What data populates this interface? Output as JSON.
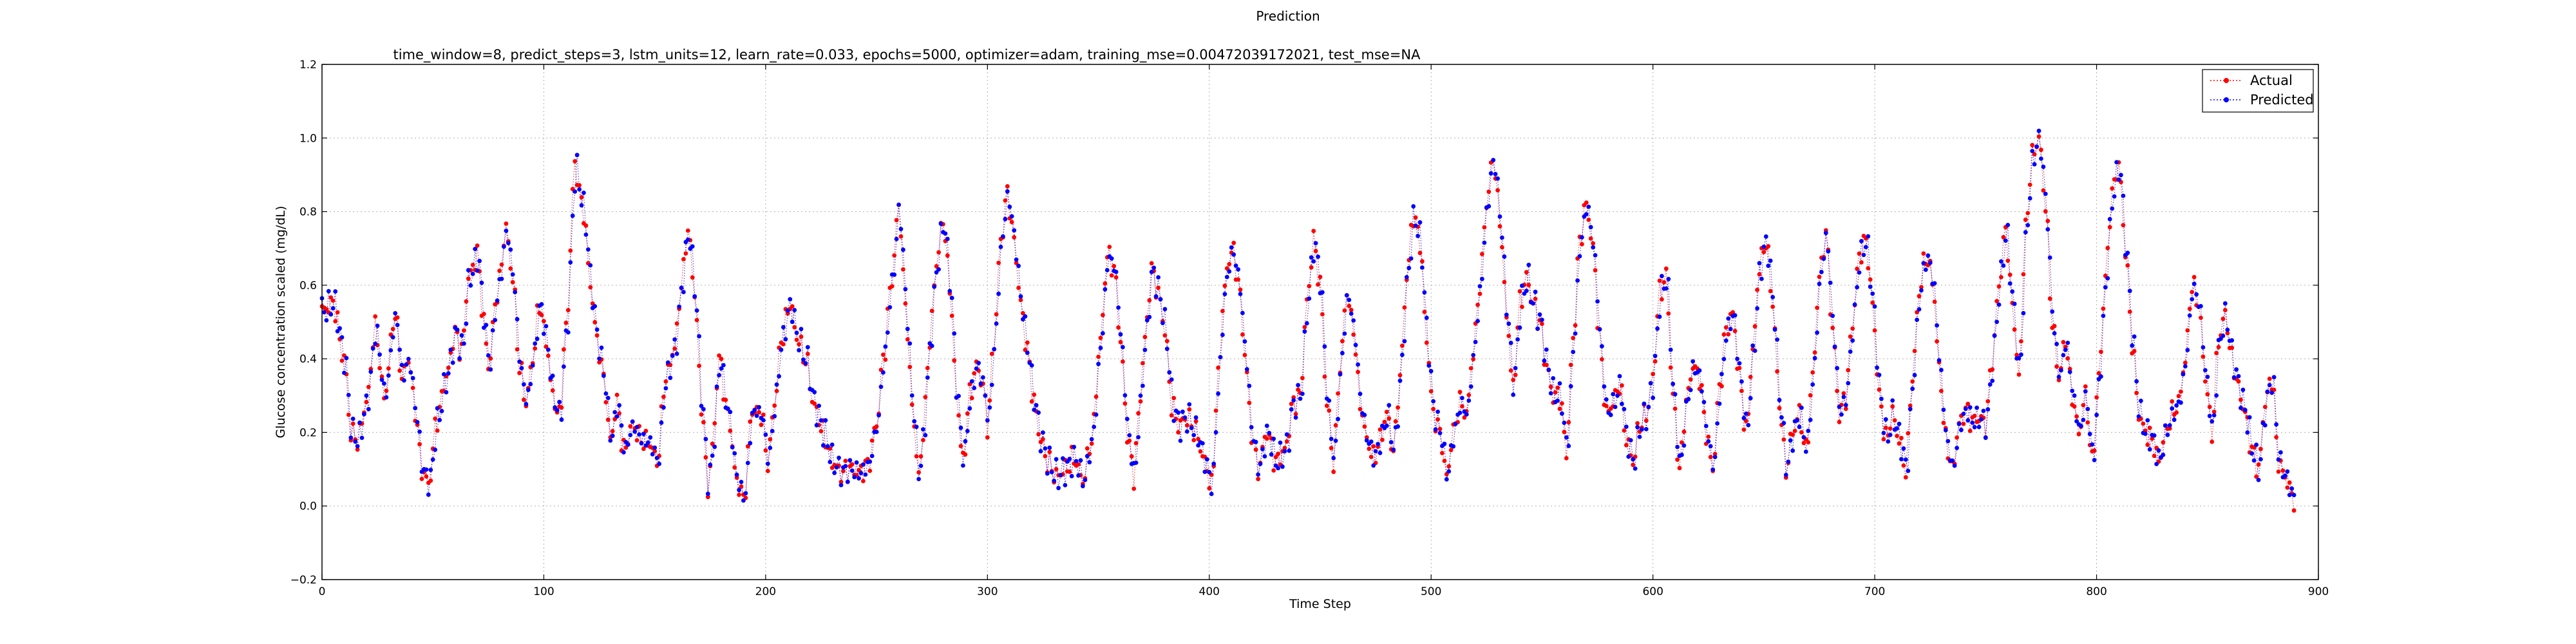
{
  "chart_data": {
    "type": "line",
    "suptitle": "Prediction",
    "title": "time_window=8, predict_steps=3, lstm_units=12, learn_rate=0.033, epochs=5000, optimizer=adam, training_mse=0.00472039172021, test_mse=NA",
    "xlabel": "Time Step",
    "ylabel": "Glucose concentration scaled (mg/dL)",
    "xlim": [
      0,
      900
    ],
    "ylim": [
      -0.2,
      1.2
    ],
    "xticks": [
      "0",
      "100",
      "200",
      "300",
      "400",
      "500",
      "600",
      "700",
      "800",
      "900"
    ],
    "yticks": [
      "−0.2",
      "0.0",
      "0.2",
      "0.4",
      "0.6",
      "0.8",
      "1.0",
      "1.2"
    ],
    "grid": true,
    "legend_position": "top-right",
    "series": [
      {
        "name": "Actual",
        "color": "#ff0000",
        "marker": "dot",
        "line": "dotted"
      },
      {
        "name": "Predicted",
        "color": "#0000ff",
        "marker": "dot",
        "line": "dotted"
      }
    ],
    "x_step": 1,
    "keypoints": [
      [
        0,
        0.53
      ],
      [
        5,
        0.55
      ],
      [
        10,
        0.4
      ],
      [
        13,
        0.2
      ],
      [
        16,
        0.18
      ],
      [
        20,
        0.28
      ],
      [
        24,
        0.48
      ],
      [
        28,
        0.3
      ],
      [
        33,
        0.52
      ],
      [
        36,
        0.35
      ],
      [
        39,
        0.4
      ],
      [
        42,
        0.26
      ],
      [
        45,
        0.1
      ],
      [
        48,
        0.06
      ],
      [
        52,
        0.24
      ],
      [
        56,
        0.35
      ],
      [
        60,
        0.47
      ],
      [
        63,
        0.42
      ],
      [
        66,
        0.62
      ],
      [
        70,
        0.68
      ],
      [
        73,
        0.5
      ],
      [
        75,
        0.38
      ],
      [
        79,
        0.58
      ],
      [
        83,
        0.75
      ],
      [
        86,
        0.62
      ],
      [
        89,
        0.38
      ],
      [
        92,
        0.28
      ],
      [
        95,
        0.4
      ],
      [
        98,
        0.55
      ],
      [
        101,
        0.45
      ],
      [
        104,
        0.3
      ],
      [
        107,
        0.24
      ],
      [
        110,
        0.48
      ],
      [
        114,
        0.92
      ],
      [
        118,
        0.8
      ],
      [
        121,
        0.6
      ],
      [
        124,
        0.45
      ],
      [
        127,
        0.35
      ],
      [
        130,
        0.18
      ],
      [
        133,
        0.28
      ],
      [
        136,
        0.15
      ],
      [
        140,
        0.22
      ],
      [
        144,
        0.18
      ],
      [
        148,
        0.17
      ],
      [
        151,
        0.12
      ],
      [
        155,
        0.35
      ],
      [
        159,
        0.43
      ],
      [
        162,
        0.6
      ],
      [
        165,
        0.75
      ],
      [
        168,
        0.58
      ],
      [
        171,
        0.28
      ],
      [
        174,
        0.05
      ],
      [
        176,
        0.16
      ],
      [
        179,
        0.4
      ],
      [
        183,
        0.25
      ],
      [
        187,
        0.07
      ],
      [
        190,
        0.02
      ],
      [
        194,
        0.26
      ],
      [
        198,
        0.25
      ],
      [
        201,
        0.12
      ],
      [
        204,
        0.28
      ],
      [
        207,
        0.45
      ],
      [
        211,
        0.55
      ],
      [
        214,
        0.46
      ],
      [
        218,
        0.4
      ],
      [
        222,
        0.27
      ],
      [
        226,
        0.2
      ],
      [
        230,
        0.12
      ],
      [
        234,
        0.09
      ],
      [
        238,
        0.1
      ],
      [
        242,
        0.09
      ],
      [
        246,
        0.11
      ],
      [
        250,
        0.22
      ],
      [
        253,
        0.4
      ],
      [
        257,
        0.62
      ],
      [
        260,
        0.82
      ],
      [
        263,
        0.55
      ],
      [
        266,
        0.28
      ],
      [
        269,
        0.08
      ],
      [
        271,
        0.2
      ],
      [
        274,
        0.45
      ],
      [
        277,
        0.66
      ],
      [
        280,
        0.78
      ],
      [
        283,
        0.6
      ],
      [
        286,
        0.3
      ],
      [
        289,
        0.12
      ],
      [
        292,
        0.3
      ],
      [
        295,
        0.38
      ],
      [
        298,
        0.33
      ],
      [
        300,
        0.22
      ],
      [
        303,
        0.45
      ],
      [
        306,
        0.72
      ],
      [
        309,
        0.85
      ],
      [
        312,
        0.72
      ],
      [
        315,
        0.55
      ],
      [
        318,
        0.42
      ],
      [
        321,
        0.28
      ],
      [
        324,
        0.18
      ],
      [
        327,
        0.12
      ],
      [
        331,
        0.08
      ],
      [
        335,
        0.1
      ],
      [
        339,
        0.13
      ],
      [
        343,
        0.07
      ],
      [
        347,
        0.18
      ],
      [
        351,
        0.45
      ],
      [
        354,
        0.68
      ],
      [
        357,
        0.65
      ],
      [
        360,
        0.45
      ],
      [
        363,
        0.2
      ],
      [
        366,
        0.08
      ],
      [
        368,
        0.24
      ],
      [
        371,
        0.45
      ],
      [
        374,
        0.64
      ],
      [
        377,
        0.58
      ],
      [
        380,
        0.48
      ],
      [
        383,
        0.28
      ],
      [
        386,
        0.22
      ],
      [
        390,
        0.24
      ],
      [
        394,
        0.2
      ],
      [
        398,
        0.12
      ],
      [
        401,
        0.05
      ],
      [
        404,
        0.35
      ],
      [
        407,
        0.6
      ],
      [
        410,
        0.7
      ],
      [
        413,
        0.62
      ],
      [
        416,
        0.42
      ],
      [
        419,
        0.2
      ],
      [
        422,
        0.1
      ],
      [
        426,
        0.2
      ],
      [
        430,
        0.12
      ],
      [
        434,
        0.15
      ],
      [
        438,
        0.28
      ],
      [
        441,
        0.3
      ],
      [
        444,
        0.55
      ],
      [
        447,
        0.72
      ],
      [
        450,
        0.6
      ],
      [
        453,
        0.28
      ],
      [
        456,
        0.12
      ],
      [
        459,
        0.38
      ],
      [
        462,
        0.58
      ],
      [
        465,
        0.48
      ],
      [
        468,
        0.28
      ],
      [
        471,
        0.18
      ],
      [
        474,
        0.13
      ],
      [
        477,
        0.18
      ],
      [
        480,
        0.25
      ],
      [
        483,
        0.15
      ],
      [
        486,
        0.35
      ],
      [
        489,
        0.62
      ],
      [
        492,
        0.79
      ],
      [
        495,
        0.72
      ],
      [
        498,
        0.45
      ],
      [
        501,
        0.25
      ],
      [
        504,
        0.2
      ],
      [
        507,
        0.08
      ],
      [
        510,
        0.2
      ],
      [
        513,
        0.28
      ],
      [
        516,
        0.25
      ],
      [
        519,
        0.42
      ],
      [
        522,
        0.6
      ],
      [
        525,
        0.82
      ],
      [
        528,
        0.95
      ],
      [
        531,
        0.78
      ],
      [
        534,
        0.52
      ],
      [
        537,
        0.32
      ],
      [
        540,
        0.55
      ],
      [
        543,
        0.62
      ],
      [
        546,
        0.55
      ],
      [
        549,
        0.5
      ],
      [
        552,
        0.38
      ],
      [
        555,
        0.3
      ],
      [
        558,
        0.3
      ],
      [
        561,
        0.15
      ],
      [
        564,
        0.45
      ],
      [
        567,
        0.72
      ],
      [
        570,
        0.82
      ],
      [
        573,
        0.7
      ],
      [
        576,
        0.45
      ],
      [
        579,
        0.25
      ],
      [
        582,
        0.28
      ],
      [
        585,
        0.33
      ],
      [
        588,
        0.18
      ],
      [
        591,
        0.12
      ],
      [
        594,
        0.22
      ],
      [
        597,
        0.25
      ],
      [
        600,
        0.35
      ],
      [
        603,
        0.58
      ],
      [
        606,
        0.62
      ],
      [
        609,
        0.3
      ],
      [
        612,
        0.1
      ],
      [
        615,
        0.28
      ],
      [
        618,
        0.38
      ],
      [
        621,
        0.35
      ],
      [
        624,
        0.2
      ],
      [
        627,
        0.1
      ],
      [
        630,
        0.32
      ],
      [
        633,
        0.48
      ],
      [
        636,
        0.52
      ],
      [
        639,
        0.35
      ],
      [
        642,
        0.2
      ],
      [
        645,
        0.42
      ],
      [
        648,
        0.65
      ],
      [
        651,
        0.72
      ],
      [
        654,
        0.55
      ],
      [
        657,
        0.28
      ],
      [
        660,
        0.1
      ],
      [
        663,
        0.2
      ],
      [
        666,
        0.25
      ],
      [
        669,
        0.15
      ],
      [
        672,
        0.35
      ],
      [
        675,
        0.62
      ],
      [
        678,
        0.74
      ],
      [
        681,
        0.48
      ],
      [
        684,
        0.25
      ],
      [
        687,
        0.3
      ],
      [
        690,
        0.5
      ],
      [
        693,
        0.68
      ],
      [
        696,
        0.72
      ],
      [
        699,
        0.55
      ],
      [
        702,
        0.3
      ],
      [
        705,
        0.18
      ],
      [
        708,
        0.25
      ],
      [
        711,
        0.18
      ],
      [
        714,
        0.1
      ],
      [
        717,
        0.35
      ],
      [
        720,
        0.58
      ],
      [
        723,
        0.68
      ],
      [
        726,
        0.62
      ],
      [
        729,
        0.38
      ],
      [
        732,
        0.18
      ],
      [
        735,
        0.1
      ],
      [
        738,
        0.22
      ],
      [
        741,
        0.26
      ],
      [
        744,
        0.23
      ],
      [
        747,
        0.24
      ],
      [
        750,
        0.22
      ],
      [
        753,
        0.4
      ],
      [
        756,
        0.6
      ],
      [
        759,
        0.75
      ],
      [
        762,
        0.55
      ],
      [
        765,
        0.35
      ],
      [
        768,
        0.75
      ],
      [
        771,
        0.95
      ],
      [
        774,
        1.0
      ],
      [
        777,
        0.82
      ],
      [
        780,
        0.5
      ],
      [
        783,
        0.35
      ],
      [
        786,
        0.45
      ],
      [
        789,
        0.3
      ],
      [
        792,
        0.2
      ],
      [
        795,
        0.3
      ],
      [
        798,
        0.12
      ],
      [
        801,
        0.35
      ],
      [
        804,
        0.62
      ],
      [
        807,
        0.85
      ],
      [
        810,
        0.93
      ],
      [
        813,
        0.7
      ],
      [
        816,
        0.45
      ],
      [
        819,
        0.25
      ],
      [
        822,
        0.2
      ],
      [
        825,
        0.18
      ],
      [
        828,
        0.12
      ],
      [
        831,
        0.2
      ],
      [
        834,
        0.25
      ],
      [
        837,
        0.28
      ],
      [
        840,
        0.4
      ],
      [
        843,
        0.6
      ],
      [
        846,
        0.55
      ],
      [
        849,
        0.35
      ],
      [
        852,
        0.2
      ],
      [
        855,
        0.45
      ],
      [
        858,
        0.52
      ],
      [
        861,
        0.4
      ],
      [
        864,
        0.32
      ],
      [
        867,
        0.25
      ],
      [
        870,
        0.15
      ],
      [
        873,
        0.1
      ],
      [
        876,
        0.28
      ],
      [
        879,
        0.35
      ],
      [
        882,
        0.12
      ],
      [
        885,
        0.08
      ],
      [
        888,
        0.03
      ],
      [
        889,
        0.02
      ]
    ]
  }
}
